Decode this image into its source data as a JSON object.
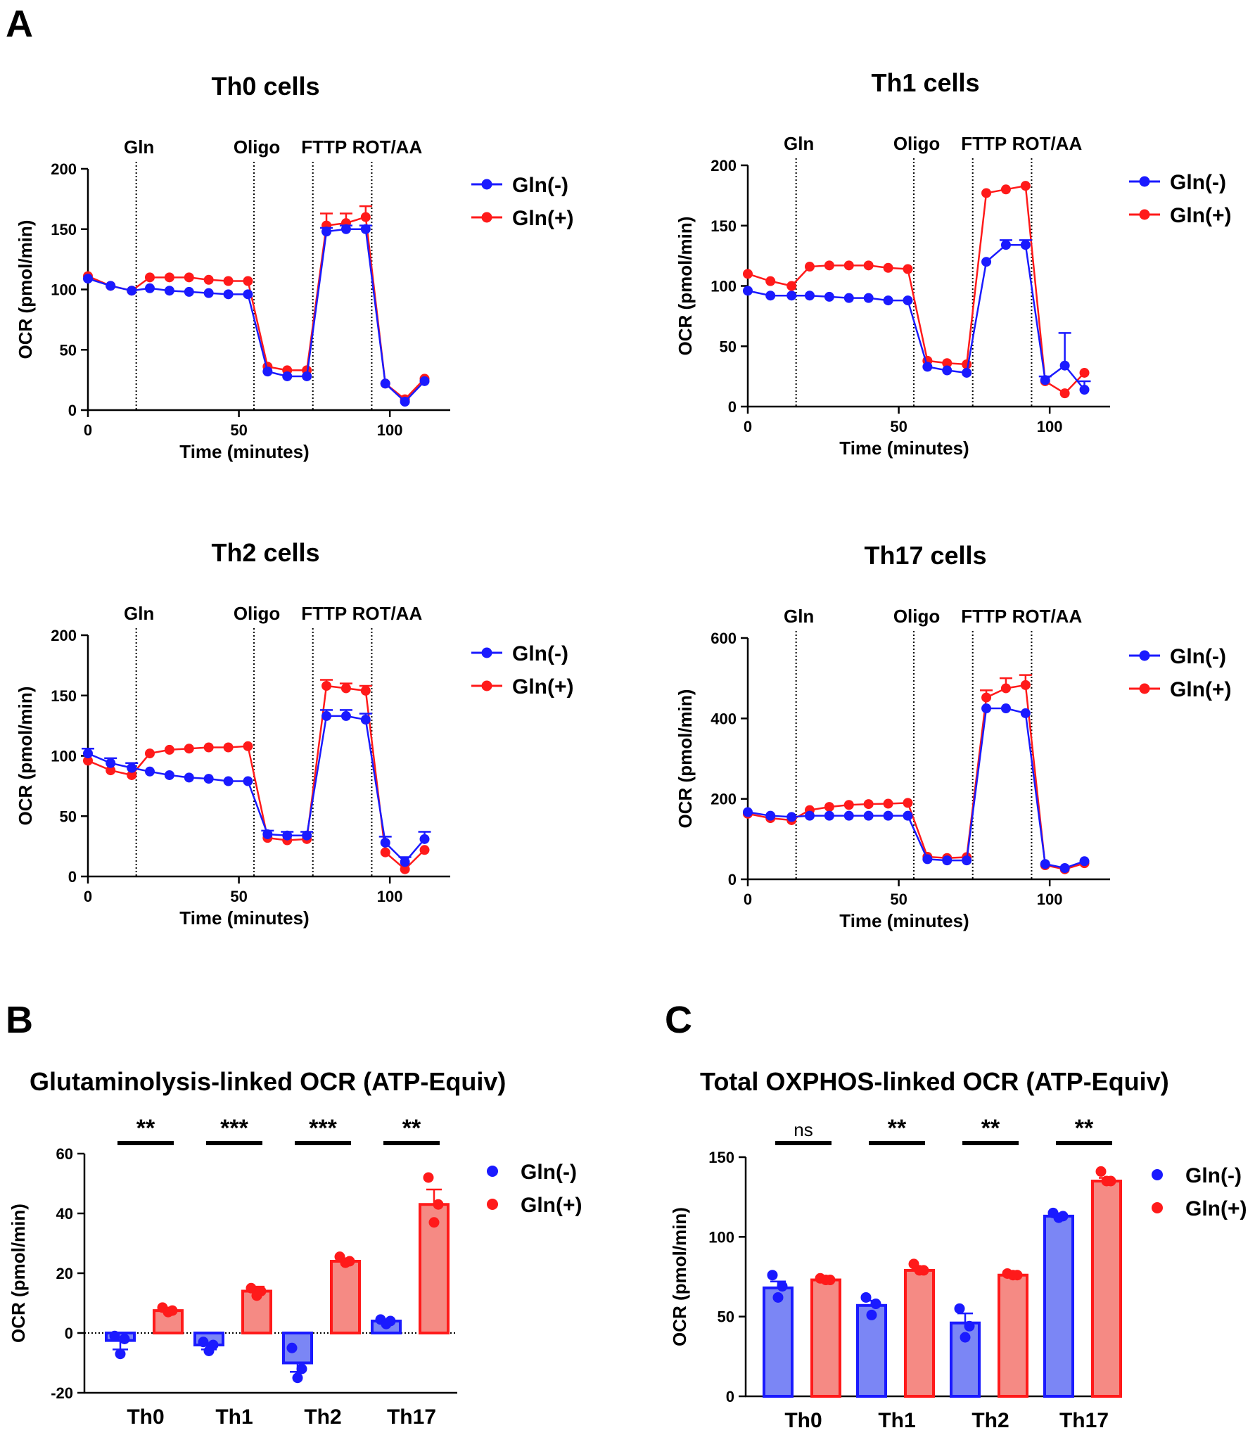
{
  "panels": {
    "A": "A",
    "B": "B",
    "C": "C"
  },
  "colors": {
    "gln_minus": "#1a1aff",
    "gln_plus": "#ff1a1a",
    "gln_minus_fill": "#7b86f5",
    "gln_plus_fill": "#f58a84"
  },
  "chart_data": [
    {
      "id": "th0",
      "type": "line",
      "title": "Th0 cells",
      "xlabel": "Time (minutes)",
      "ylabel": "OCR (pmol/min)",
      "xlim": [
        0,
        120
      ],
      "ylim": [
        0,
        200
      ],
      "xticks": [
        "0",
        "50",
        "100"
      ],
      "yticks": [
        "0",
        "50",
        "100",
        "150",
        "200"
      ],
      "events": [
        {
          "t": 16,
          "label": "Gln"
        },
        {
          "t": 55,
          "label": "Oligo"
        },
        {
          "t": 74.5,
          "label": "FTTP"
        },
        {
          "t": 94,
          "label": "ROT/AA"
        }
      ],
      "legend": [
        "Gln(-)",
        "Gln(+)"
      ],
      "x": [
        0,
        7.5,
        14.5,
        20.5,
        27,
        33.5,
        40,
        46.5,
        53,
        59.5,
        66,
        72.5,
        79,
        85.5,
        92,
        98.5,
        105,
        111.5
      ],
      "series": [
        {
          "name": "Gln(-)",
          "values": [
            109,
            103,
            99,
            101,
            99,
            98,
            97,
            96,
            96,
            32,
            28,
            28,
            148,
            150,
            150,
            22,
            7,
            24
          ],
          "err": [
            0,
            0,
            0,
            0,
            0,
            0,
            0,
            0,
            0,
            0,
            0,
            0,
            3,
            3,
            3,
            0,
            0,
            0
          ]
        },
        {
          "name": "Gln(+)",
          "values": [
            111,
            103,
            99,
            110,
            110,
            110,
            108,
            107,
            107,
            36,
            33,
            33,
            153,
            155,
            160,
            22,
            9,
            26
          ],
          "err": [
            0,
            0,
            0,
            0,
            0,
            0,
            0,
            0,
            0,
            0,
            0,
            0,
            10,
            8,
            9,
            0,
            0,
            0
          ]
        }
      ]
    },
    {
      "id": "th1",
      "type": "line",
      "title": "Th1 cells",
      "xlabel": "Time (minutes)",
      "ylabel": "OCR (pmol/min)",
      "xlim": [
        0,
        120
      ],
      "ylim": [
        0,
        200
      ],
      "xticks": [
        "0",
        "50",
        "100"
      ],
      "yticks": [
        "0",
        "50",
        "100",
        "150",
        "200"
      ],
      "events": [
        {
          "t": 16,
          "label": "Gln"
        },
        {
          "t": 55,
          "label": "Oligo"
        },
        {
          "t": 74.5,
          "label": "FTTP"
        },
        {
          "t": 94,
          "label": "ROT/AA"
        }
      ],
      "legend": [
        "Gln(-)",
        "Gln(+)"
      ],
      "x": [
        0,
        7.5,
        14.5,
        20.5,
        27,
        33.5,
        40,
        46.5,
        53,
        59.5,
        66,
        72.5,
        79,
        85.5,
        92,
        98.5,
        105,
        111.5
      ],
      "series": [
        {
          "name": "Gln(-)",
          "values": [
            96,
            92,
            92,
            92,
            91,
            90,
            90,
            88,
            88,
            33,
            30,
            28,
            120,
            134,
            134,
            22,
            34,
            14
          ],
          "err": [
            0,
            0,
            0,
            0,
            0,
            0,
            0,
            0,
            0,
            0,
            0,
            0,
            0,
            4,
            4,
            3,
            27,
            7
          ]
        },
        {
          "name": "Gln(+)",
          "values": [
            110,
            104,
            100,
            116,
            117,
            117,
            117,
            115,
            114,
            38,
            36,
            35,
            177,
            180,
            183,
            21,
            11,
            28
          ],
          "err": [
            0,
            0,
            0,
            0,
            0,
            0,
            0,
            0,
            0,
            0,
            0,
            0,
            0,
            0,
            0,
            0,
            0,
            0
          ]
        }
      ]
    },
    {
      "id": "th2",
      "type": "line",
      "title": "Th2 cells",
      "xlabel": "Time (minutes)",
      "ylabel": "OCR (pmol/min)",
      "xlim": [
        0,
        120
      ],
      "ylim": [
        0,
        200
      ],
      "xticks": [
        "0",
        "50",
        "100"
      ],
      "yticks": [
        "0",
        "50",
        "100",
        "150",
        "200"
      ],
      "events": [
        {
          "t": 16,
          "label": "Gln"
        },
        {
          "t": 55,
          "label": "Oligo"
        },
        {
          "t": 74.5,
          "label": "FTTP"
        },
        {
          "t": 94,
          "label": "ROT/AA"
        }
      ],
      "legend": [
        "Gln(-)",
        "Gln(+)"
      ],
      "x": [
        0,
        7.5,
        14.5,
        20.5,
        27,
        33.5,
        40,
        46.5,
        53,
        59.5,
        66,
        72.5,
        79,
        85.5,
        92,
        98.5,
        105,
        111.5
      ],
      "series": [
        {
          "name": "Gln(-)",
          "values": [
            102,
            94,
            90,
            87,
            84,
            82,
            81,
            79,
            79,
            35,
            34,
            34,
            133,
            133,
            130,
            28,
            12,
            31
          ],
          "err": [
            4,
            4,
            4,
            0,
            0,
            0,
            0,
            0,
            0,
            3,
            3,
            3,
            5,
            5,
            5,
            5,
            4,
            6
          ]
        },
        {
          "name": "Gln(+)",
          "values": [
            96,
            88,
            84,
            102,
            105,
            106,
            107,
            107,
            108,
            32,
            30,
            31,
            158,
            156,
            154,
            20,
            6,
            22
          ],
          "err": [
            0,
            0,
            0,
            0,
            0,
            0,
            0,
            0,
            0,
            0,
            0,
            0,
            5,
            4,
            4,
            0,
            0,
            0
          ]
        }
      ]
    },
    {
      "id": "th17",
      "type": "line",
      "title": "Th17 cells",
      "xlabel": "Time (minutes)",
      "ylabel": "OCR (pmol/min)",
      "xlim": [
        0,
        120
      ],
      "ylim": [
        0,
        600
      ],
      "xticks": [
        "0",
        "50",
        "100"
      ],
      "yticks": [
        "0",
        "200",
        "400",
        "600"
      ],
      "events": [
        {
          "t": 16,
          "label": "Gln"
        },
        {
          "t": 55,
          "label": "Oligo"
        },
        {
          "t": 74.5,
          "label": "FTTP"
        },
        {
          "t": 94,
          "label": "ROT/AA"
        }
      ],
      "legend": [
        "Gln(-)",
        "Gln(+)"
      ],
      "x": [
        0,
        7.5,
        14.5,
        20.5,
        27,
        33.5,
        40,
        46.5,
        53,
        59.5,
        66,
        72.5,
        79,
        85.5,
        92,
        98.5,
        105,
        111.5
      ],
      "series": [
        {
          "name": "Gln(-)",
          "values": [
            167,
            158,
            155,
            158,
            158,
            158,
            158,
            158,
            158,
            50,
            47,
            47,
            425,
            425,
            413,
            38,
            28,
            45
          ],
          "err": [
            0,
            0,
            0,
            0,
            0,
            0,
            0,
            0,
            0,
            0,
            0,
            0,
            0,
            0,
            0,
            0,
            0,
            0
          ]
        },
        {
          "name": "Gln(+)",
          "values": [
            163,
            152,
            147,
            172,
            180,
            185,
            187,
            188,
            190,
            56,
            53,
            55,
            452,
            475,
            483,
            35,
            25,
            40
          ],
          "err": [
            0,
            0,
            0,
            0,
            0,
            0,
            0,
            0,
            0,
            0,
            0,
            0,
            18,
            25,
            25,
            0,
            0,
            0
          ]
        }
      ]
    },
    {
      "id": "glut",
      "type": "bar",
      "title": "Glutaminolysis-linked OCR (ATP-Equiv)",
      "ylabel": "OCR (pmol/min)",
      "ylim": [
        -20,
        60
      ],
      "yticks": [
        "-20",
        "0",
        "20",
        "40",
        "60"
      ],
      "categories": [
        "Th0",
        "Th1",
        "Th2",
        "Th17"
      ],
      "significance": [
        "**",
        "***",
        "***",
        "**"
      ],
      "legend": [
        "Gln(-)",
        "Gln(+)"
      ],
      "series": [
        {
          "name": "Gln(-)",
          "values": [
            -2.5,
            -4,
            -10,
            4
          ],
          "err": [
            3,
            1.5,
            3,
            0.5
          ],
          "points": [
            [
              -1,
              -2,
              -7
            ],
            [
              -3,
              -4,
              -6
            ],
            [
              -5,
              -12,
              -15
            ],
            [
              4.5,
              4,
              3
            ]
          ]
        },
        {
          "name": "Gln(+)",
          "values": [
            7.5,
            14,
            24,
            43
          ],
          "err": [
            1,
            1.5,
            1,
            5
          ],
          "points": [
            [
              8.5,
              7.5,
              7
            ],
            [
              15,
              14,
              12.5
            ],
            [
              25.5,
              24,
              23.5
            ],
            [
              52,
              43,
              37
            ]
          ]
        }
      ]
    },
    {
      "id": "oxphos",
      "type": "bar",
      "title": "Total OXPHOS-linked OCR (ATP-Equiv)",
      "ylabel": "OCR (pmol/min)",
      "ylim": [
        0,
        150
      ],
      "yticks": [
        "0",
        "50",
        "100",
        "150"
      ],
      "categories": [
        "Th0",
        "Th1",
        "Th2",
        "Th17"
      ],
      "significance": [
        "ns",
        "**",
        "**",
        "**"
      ],
      "legend": [
        "Gln(-)",
        "Gln(+)"
      ],
      "series": [
        {
          "name": "Gln(-)",
          "values": [
            68,
            57,
            46,
            113
          ],
          "err": [
            4,
            3,
            6,
            1
          ],
          "points": [
            [
              76,
              69,
              62
            ],
            [
              62,
              58,
              51
            ],
            [
              55,
              44,
              37
            ],
            [
              115,
              113,
              112
            ]
          ]
        },
        {
          "name": "Gln(+)",
          "values": [
            73,
            79,
            76,
            135
          ],
          "err": [
            1,
            1.5,
            0.5,
            2
          ],
          "points": [
            [
              74,
              73,
              73
            ],
            [
              83,
              79,
              79
            ],
            [
              77,
              76,
              76
            ],
            [
              141,
              135,
              135
            ]
          ]
        }
      ]
    }
  ]
}
